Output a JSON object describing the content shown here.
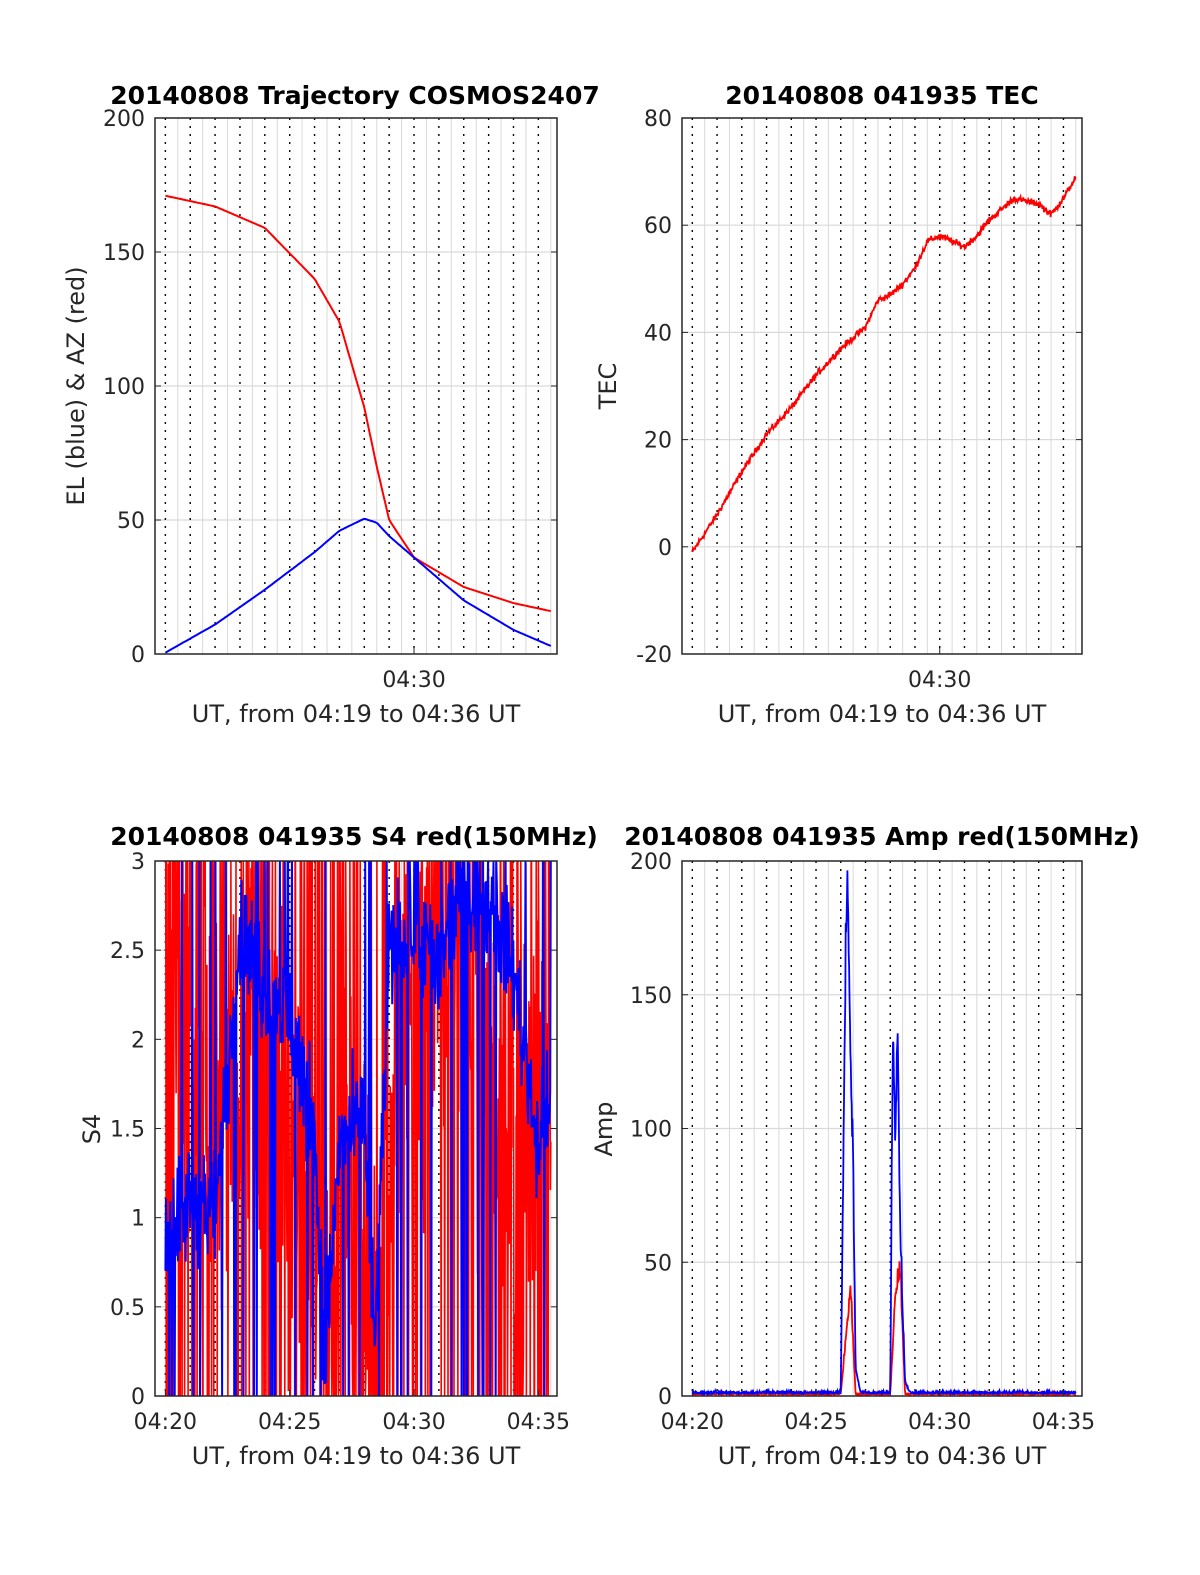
{
  "figure": {
    "panels": [
      {
        "id": "trajectory",
        "title": "20140808 Trajectory COSMOS2407",
        "xlabel": "UT, from 04:19 to 04:36 UT",
        "ylabel": "EL (blue) & AZ (red)"
      },
      {
        "id": "tec",
        "title": "20140808 041935 TEC",
        "xlabel": "UT, from 04:19 to 04:36 UT",
        "ylabel": "TEC"
      },
      {
        "id": "s4",
        "title": "20140808 041935 S4 red(150MHz)",
        "xlabel": "UT, from 04:19 to 04:36 UT",
        "ylabel": "S4"
      },
      {
        "id": "amp",
        "title": "20140808 041935 Amp red(150MHz)",
        "xlabel": "UT, from 04:19 to 04:36 UT",
        "ylabel": "Amp"
      }
    ]
  },
  "chart_data": [
    {
      "type": "line",
      "title": "20140808 Trajectory COSMOS2407",
      "xlabel": "UT, from 04:19 to 04:36 UT",
      "ylabel": "EL (blue) & AZ (red)",
      "xlim": [
        "04:19:35",
        "04:35:45"
      ],
      "ylim": [
        0,
        200
      ],
      "yticks": [
        0,
        50,
        100,
        150,
        200
      ],
      "xticks": [
        "04:30"
      ],
      "grid": true,
      "colors": {
        "az": "#ff0000",
        "el": "#0000ff"
      },
      "x": [
        "04:20",
        "04:22",
        "04:24",
        "04:26",
        "04:27",
        "04:28",
        "04:28.5",
        "04:29",
        "04:30",
        "04:32",
        "04:34",
        "04:35.5"
      ],
      "series": [
        {
          "key": "az",
          "color": "#ff0000",
          "values": [
            171,
            167,
            159,
            140,
            124,
            92,
            70,
            50,
            36,
            25,
            19,
            16
          ]
        },
        {
          "key": "el",
          "color": "#0000ff",
          "values": [
            0.5,
            11,
            24,
            38,
            46,
            50.5,
            49,
            44,
            36,
            20,
            9,
            3
          ]
        }
      ]
    },
    {
      "type": "line",
      "title": "20140808 041935 TEC",
      "xlabel": "UT, from 04:19 to 04:36 UT",
      "ylabel": "TEC",
      "xlim": [
        "04:19:35",
        "04:35:45"
      ],
      "ylim": [
        -20,
        80
      ],
      "yticks": [
        -20,
        0,
        20,
        40,
        60,
        80
      ],
      "xticks": [
        "04:30"
      ],
      "grid": true,
      "color": "#ff0000",
      "x": [
        "04:20",
        "04:21",
        "04:22",
        "04:23",
        "04:24",
        "04:25",
        "04:26",
        "04:27",
        "04:27.5",
        "04:28",
        "04:28.5",
        "04:29",
        "04:29.5",
        "04:30",
        "04:30.5",
        "04:31",
        "04:31.5",
        "04:32",
        "04:33",
        "04:34",
        "04:34.5",
        "04:35",
        "04:35.5"
      ],
      "values": [
        -1,
        6,
        14,
        21,
        26,
        32,
        37,
        41,
        46,
        47,
        49,
        52,
        57,
        58,
        57,
        56,
        58,
        61,
        65,
        64,
        62,
        65,
        69
      ]
    },
    {
      "type": "line",
      "title": "20140808 041935 S4 red(150MHz)",
      "xlabel": "UT, from 04:19 to 04:36 UT",
      "ylabel": "S4",
      "xlim": [
        "04:19:35",
        "04:35:45"
      ],
      "ylim": [
        0,
        3
      ],
      "yticks": [
        0,
        0.5,
        1,
        1.5,
        2,
        2.5,
        3
      ],
      "xticks": [
        "04:20",
        "04:25",
        "04:30",
        "04:35"
      ],
      "grid": true,
      "series": [
        {
          "color": "#ff0000",
          "description_values": {
            "x": [
              "04:20",
              "04:22",
              "04:24",
              "04:26",
              "04:26.5",
              "04:27",
              "04:28",
              "04:28.2",
              "04:29",
              "04:30",
              "04:32",
              "04:34",
              "04:35.5"
            ],
            "y": [
              2.5,
              1.5,
              2.2,
              0.8,
              0.3,
              1.2,
              0.9,
              0.2,
              1.6,
              2.2,
              2.6,
              1.5,
              1.8
            ]
          }
        },
        {
          "color": "#0000ff",
          "description_values": {
            "x": [
              "04:20",
              "04:21",
              "04:22",
              "04:23",
              "04:24",
              "04:25",
              "04:26",
              "04:26.4",
              "04:27",
              "04:28",
              "04:28.4",
              "04:29",
              "04:30",
              "04:31",
              "04:32",
              "04:33",
              "04:34",
              "04:35",
              "04:35.5"
            ],
            "y": [
              0.9,
              1.1,
              1.0,
              2.6,
              2.3,
              2.1,
              1.5,
              0.2,
              1.4,
              1.6,
              0.2,
              2.5,
              2.6,
              2.4,
              2.9,
              2.8,
              2.4,
              1.4,
              1.6
            ]
          }
        }
      ]
    },
    {
      "type": "line",
      "title": "20140808 041935 Amp red(150MHz)",
      "xlabel": "UT, from 04:19 to 04:36 UT",
      "ylabel": "Amp",
      "xlim": [
        "04:19:35",
        "04:35:45"
      ],
      "ylim": [
        0,
        200
      ],
      "yticks": [
        0,
        50,
        100,
        150,
        200
      ],
      "xticks": [
        "04:20",
        "04:25",
        "04:30",
        "04:35"
      ],
      "grid": true,
      "series": [
        {
          "color": "#0000ff",
          "x": [
            "04:20",
            "04:26.0",
            "04:26.2",
            "04:26.3",
            "04:26.4",
            "04:26.5",
            "04:26.6",
            "04:26.8",
            "04:28.0",
            "04:28.1",
            "04:28.2",
            "04:28.3",
            "04:28.4",
            "04:28.5",
            "04:28.6",
            "04:28.8",
            "04:35.5"
          ],
          "values": [
            1,
            1,
            160,
            175,
            120,
            80,
            10,
            1,
            1,
            125,
            90,
            128,
            60,
            30,
            5,
            1,
            1
          ]
        },
        {
          "color": "#ff0000",
          "x": [
            "04:20",
            "04:26.0",
            "04:26.2",
            "04:26.4",
            "04:26.6",
            "04:28.0",
            "04:28.2",
            "04:28.4",
            "04:28.6",
            "04:35.5"
          ],
          "values": [
            0.5,
            0.5,
            20,
            38,
            0.5,
            0.5,
            35,
            45,
            0.5,
            0.5
          ]
        }
      ]
    }
  ]
}
